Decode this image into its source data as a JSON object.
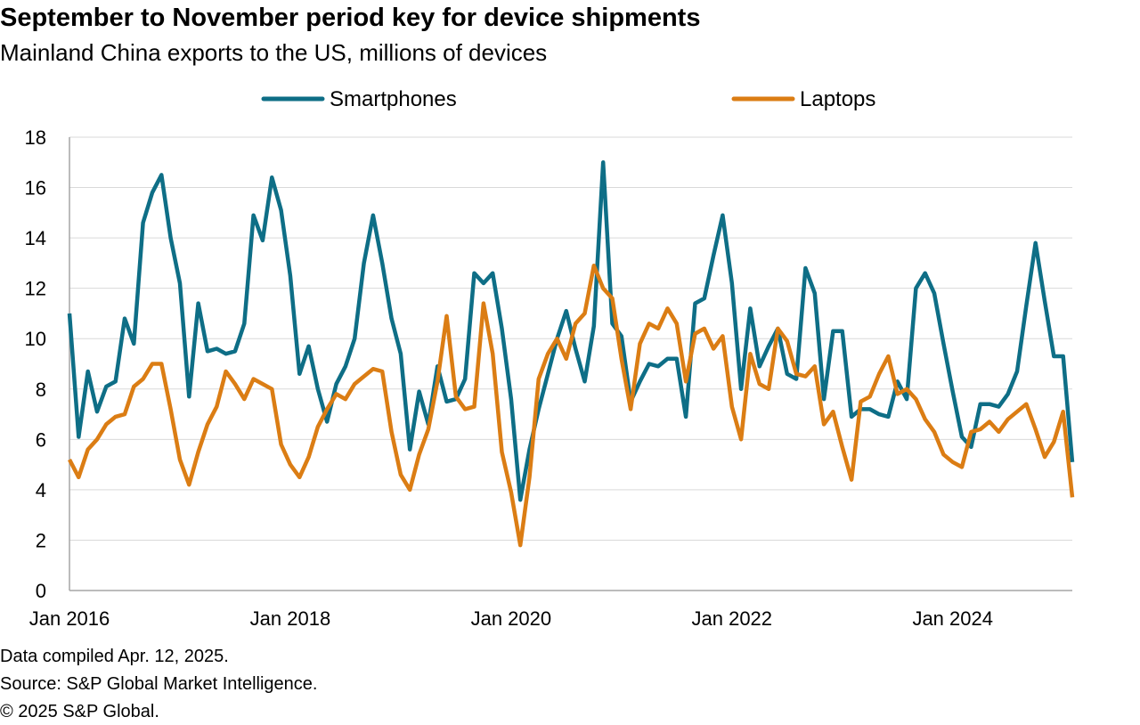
{
  "header": {
    "title": "September to November period key for device shipments",
    "subtitle": "Mainland China exports to the US, millions of devices"
  },
  "footer": {
    "compiled": "Data compiled Apr. 12, 2025.",
    "source": "Source: S&P Global Market Intelligence.",
    "copyright": "© 2025 S&P Global."
  },
  "chart_data": {
    "type": "line",
    "title": "September to November period key for device shipments",
    "subtitle": "Mainland China exports to the US, millions of devices",
    "xlabel": "",
    "ylabel": "",
    "ylim": [
      0,
      18
    ],
    "yticks": [
      0,
      2,
      4,
      6,
      8,
      10,
      12,
      14,
      16,
      18
    ],
    "grid": true,
    "legend": "top-center",
    "start": "Jan 2016",
    "x_tick_labels": [
      "Jan 2016",
      "Jan 2018",
      "Jan 2020",
      "Jan 2022",
      "Jan 2024"
    ],
    "x_tick_month_index": [
      0,
      24,
      48,
      72,
      96
    ],
    "series": [
      {
        "name": "Smartphones",
        "color": "#0E6E86",
        "values": [
          11.0,
          6.1,
          8.7,
          7.1,
          8.1,
          8.3,
          10.8,
          9.8,
          14.6,
          15.8,
          16.5,
          14.0,
          12.2,
          7.7,
          11.4,
          9.5,
          9.6,
          9.4,
          9.5,
          10.6,
          14.9,
          13.9,
          16.4,
          15.1,
          12.5,
          8.6,
          9.7,
          8.0,
          6.7,
          8.2,
          8.9,
          10.0,
          13.0,
          14.9,
          13.0,
          10.8,
          9.4,
          5.6,
          7.9,
          6.6,
          8.9,
          7.5,
          7.6,
          8.4,
          12.6,
          12.2,
          12.6,
          10.4,
          7.6,
          3.6,
          5.6,
          7.2,
          8.6,
          10.0,
          11.1,
          9.6,
          8.3,
          10.5,
          17.0,
          10.6,
          10.1,
          7.5,
          8.3,
          9.0,
          8.9,
          9.2,
          9.2,
          6.9,
          11.4,
          11.6,
          13.3,
          14.9,
          12.2,
          8.0,
          11.2,
          8.9,
          9.7,
          10.4,
          8.6,
          8.4,
          12.8,
          11.8,
          7.6,
          10.3,
          10.3,
          6.9,
          7.2,
          7.2,
          7.0,
          6.9,
          8.3,
          7.6,
          12.0,
          12.6,
          11.8,
          9.8,
          7.9,
          6.1,
          5.7,
          7.4,
          7.4,
          7.3,
          7.8,
          8.7,
          11.3,
          13.8,
          11.5,
          9.3,
          9.3,
          5.1
        ]
      },
      {
        "name": "Laptops",
        "color": "#DB7D14",
        "values": [
          5.2,
          4.5,
          5.6,
          6.0,
          6.6,
          6.9,
          7.0,
          8.1,
          8.4,
          9.0,
          9.0,
          7.2,
          5.2,
          4.2,
          5.5,
          6.6,
          7.3,
          8.7,
          8.2,
          7.6,
          8.4,
          8.2,
          8.0,
          5.8,
          5.0,
          4.5,
          5.3,
          6.5,
          7.2,
          7.8,
          7.6,
          8.2,
          8.5,
          8.8,
          8.7,
          6.3,
          4.6,
          4.0,
          5.4,
          6.4,
          8.3,
          10.9,
          7.7,
          7.2,
          7.3,
          11.4,
          9.4,
          5.5,
          3.9,
          1.8,
          4.5,
          8.4,
          9.4,
          10.0,
          9.2,
          10.6,
          11.0,
          12.9,
          12.0,
          11.6,
          9.2,
          7.2,
          9.8,
          10.6,
          10.4,
          11.2,
          10.6,
          8.3,
          10.2,
          10.4,
          9.6,
          10.1,
          7.3,
          6.0,
          9.4,
          8.2,
          8.0,
          10.4,
          9.9,
          8.6,
          8.5,
          8.9,
          6.6,
          7.1,
          5.7,
          4.4,
          7.5,
          7.7,
          8.6,
          9.3,
          7.8,
          8.0,
          7.6,
          6.8,
          6.3,
          5.4,
          5.1,
          4.9,
          6.3,
          6.4,
          6.7,
          6.3,
          6.8,
          7.1,
          7.4,
          6.4,
          5.3,
          5.9,
          7.1,
          3.7
        ]
      }
    ]
  }
}
